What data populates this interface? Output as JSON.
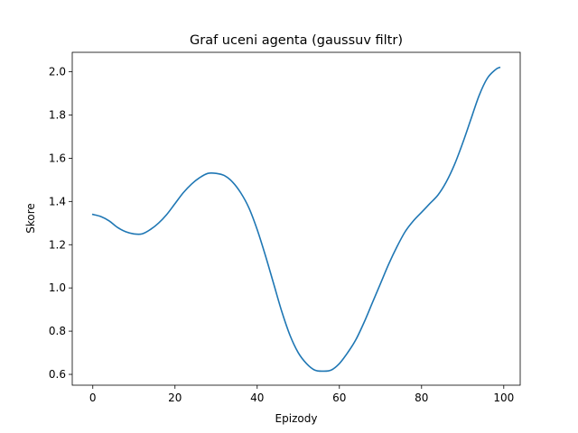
{
  "chart_data": {
    "type": "line",
    "title": "Graf uceni agenta (gaussuv filtr)",
    "xlabel": "Epizody",
    "ylabel": "Skore",
    "xlim": [
      -5,
      104
    ],
    "ylim": [
      0.55,
      2.09
    ],
    "grid": false,
    "legend": "none",
    "xticks": [
      0,
      20,
      40,
      60,
      80,
      100
    ],
    "yticks": [
      0.6,
      0.8,
      1.0,
      1.2,
      1.4,
      1.6,
      1.8,
      2.0
    ],
    "xtick_labels": [
      "0",
      "20",
      "40",
      "60",
      "80",
      "100"
    ],
    "ytick_labels": [
      "0.6",
      "0.8",
      "1.0",
      "1.2",
      "1.4",
      "1.6",
      "1.8",
      "2.0"
    ],
    "series": [
      {
        "color": "#1f77b4",
        "x": [
          0,
          2,
          4,
          6,
          8,
          10,
          12,
          14,
          16,
          18,
          20,
          22,
          24,
          26,
          28,
          30,
          32,
          34,
          36,
          38,
          40,
          42,
          44,
          46,
          48,
          50,
          52,
          54,
          56,
          58,
          60,
          62,
          64,
          66,
          68,
          70,
          72,
          74,
          76,
          78,
          80,
          82,
          84,
          86,
          88,
          90,
          92,
          94,
          96,
          98,
          99
        ],
        "y": [
          1.34,
          1.33,
          1.31,
          1.28,
          1.26,
          1.25,
          1.25,
          1.27,
          1.3,
          1.34,
          1.39,
          1.44,
          1.48,
          1.51,
          1.53,
          1.53,
          1.52,
          1.49,
          1.44,
          1.37,
          1.27,
          1.15,
          1.02,
          0.89,
          0.78,
          0.7,
          0.65,
          0.62,
          0.615,
          0.62,
          0.65,
          0.7,
          0.76,
          0.84,
          0.93,
          1.02,
          1.11,
          1.19,
          1.26,
          1.31,
          1.35,
          1.39,
          1.43,
          1.49,
          1.57,
          1.67,
          1.78,
          1.89,
          1.97,
          2.01,
          2.02
        ]
      }
    ]
  }
}
